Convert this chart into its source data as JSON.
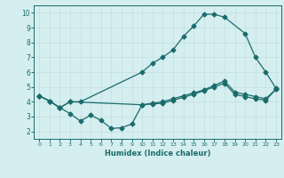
{
  "line1_x": [
    0,
    1,
    2,
    3,
    4,
    10,
    11,
    12,
    13,
    14,
    15,
    16,
    17,
    18,
    20,
    21,
    22,
    23
  ],
  "line1_y": [
    4.4,
    4.05,
    3.6,
    4.0,
    4.0,
    6.0,
    6.6,
    7.0,
    7.5,
    8.4,
    9.1,
    9.9,
    9.9,
    9.7,
    8.6,
    7.0,
    6.0,
    4.9
  ],
  "line2_x": [
    0,
    1,
    2,
    3,
    10,
    11,
    12,
    13,
    14,
    15,
    16,
    17,
    18,
    19,
    20,
    21,
    22,
    23
  ],
  "line2_y": [
    4.4,
    4.05,
    3.6,
    4.0,
    3.8,
    3.9,
    4.0,
    4.2,
    4.4,
    4.6,
    4.8,
    5.1,
    5.4,
    4.65,
    4.5,
    4.35,
    4.2,
    4.85
  ],
  "line3_x": [
    0,
    1,
    2,
    3,
    4,
    5,
    6,
    7,
    8,
    9,
    10,
    11,
    12,
    13,
    14,
    15,
    16,
    17,
    18,
    19,
    20,
    21,
    22,
    23
  ],
  "line3_y": [
    4.4,
    4.05,
    3.6,
    3.2,
    2.7,
    3.1,
    2.75,
    2.2,
    2.25,
    2.5,
    3.8,
    3.85,
    3.9,
    4.1,
    4.3,
    4.5,
    4.75,
    5.0,
    5.25,
    4.5,
    4.35,
    4.2,
    4.1,
    4.85
  ],
  "line_color": "#1a6b6b",
  "bg_color": "#d5eef0",
  "grid_color": "#c4dfe0",
  "xlabel": "Humidex (Indice chaleur)",
  "ylim": [
    1.5,
    10.5
  ],
  "xlim": [
    -0.5,
    23.5
  ],
  "yticks": [
    2,
    3,
    4,
    5,
    6,
    7,
    8,
    9,
    10
  ],
  "xticks": [
    0,
    1,
    2,
    3,
    4,
    5,
    6,
    7,
    8,
    9,
    10,
    11,
    12,
    13,
    14,
    15,
    16,
    17,
    18,
    19,
    20,
    21,
    22,
    23
  ]
}
